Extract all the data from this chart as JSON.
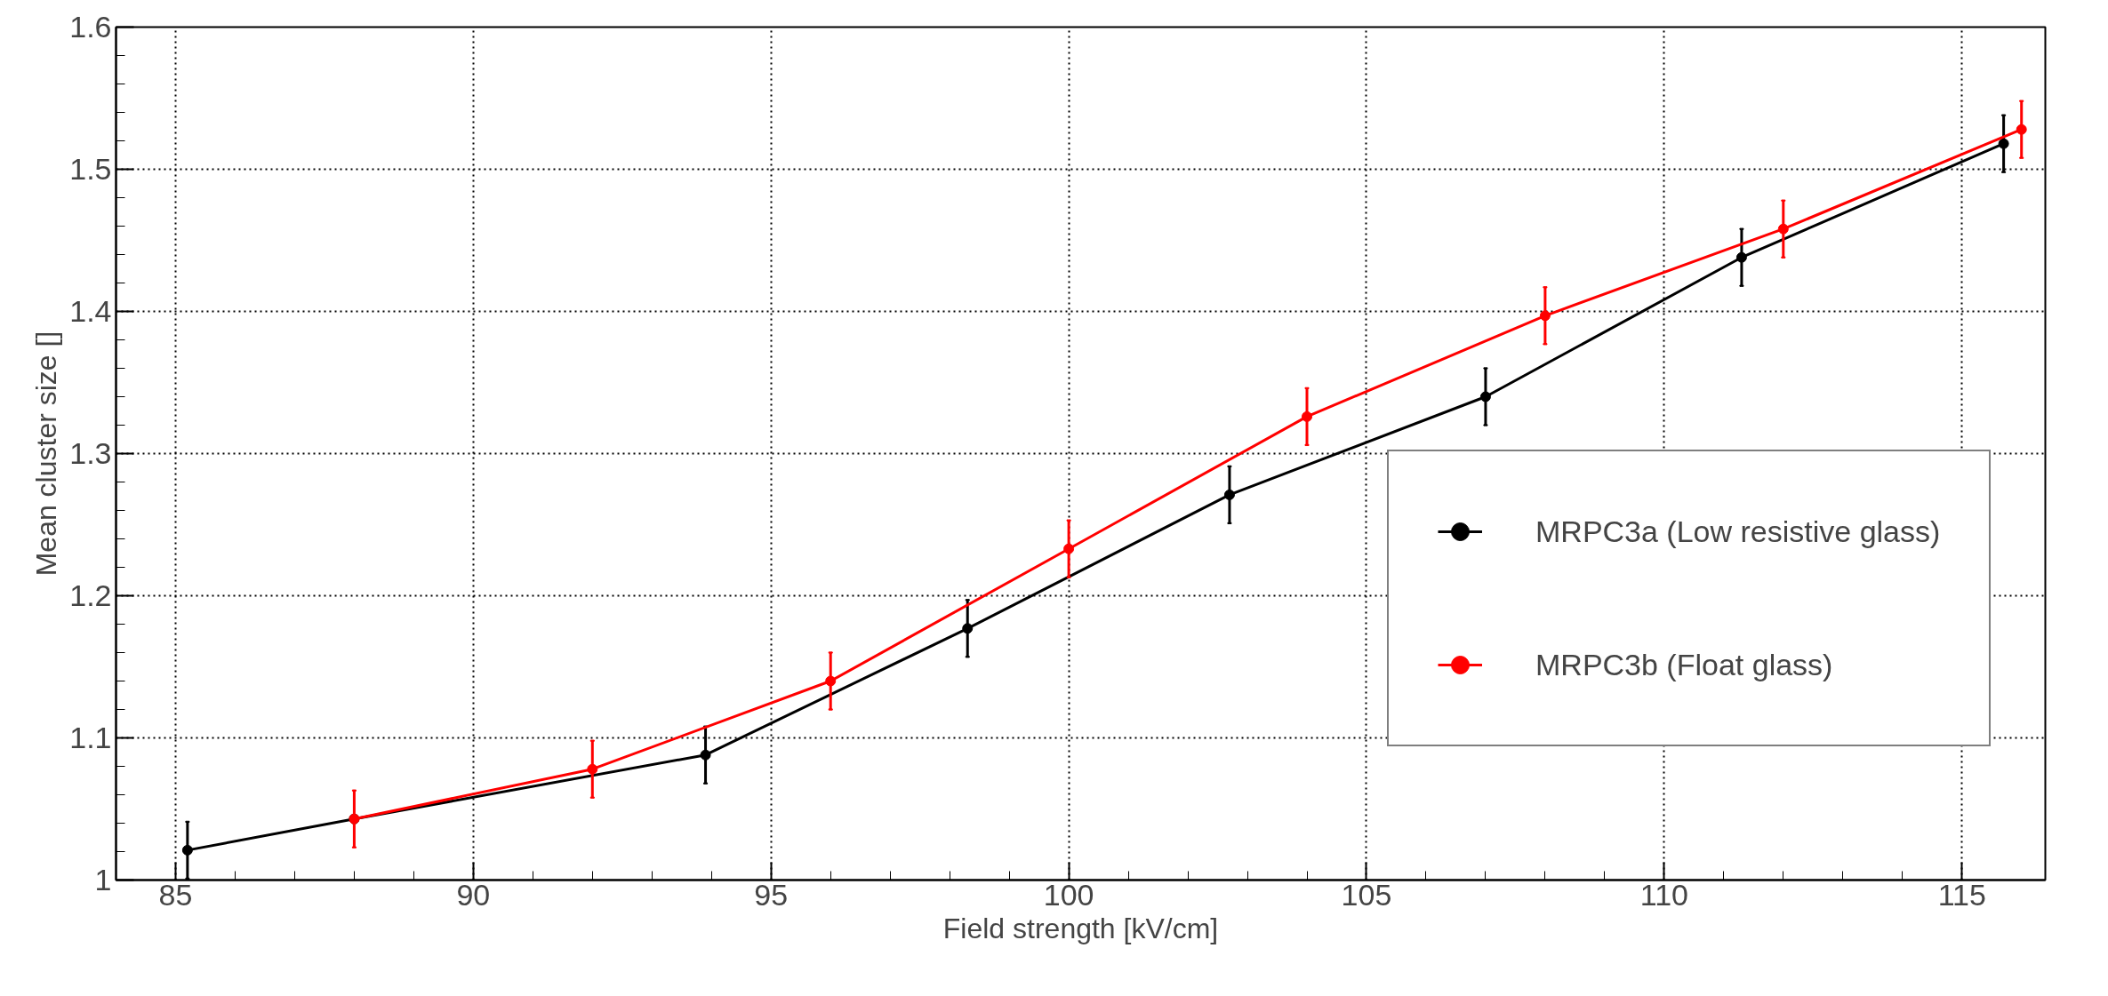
{
  "chart_data": {
    "type": "line",
    "xlabel": "Field strength [kV/cm]",
    "ylabel": "Mean cluster size []",
    "xlim": [
      84,
      116.4
    ],
    "ylim": [
      1,
      1.6
    ],
    "xticks": [
      85,
      90,
      95,
      100,
      105,
      110,
      115
    ],
    "yticks": [
      1,
      1.1,
      1.2,
      1.3,
      1.4,
      1.5,
      1.6
    ],
    "grid": true,
    "legend": "right",
    "marker": "circle",
    "line_style": "solid",
    "series": [
      {
        "name": "MRPC3a (Low resistive glass)",
        "color": "#000000",
        "x": [
          85.2,
          88.0,
          93.9,
          98.3,
          102.7,
          107.0,
          111.3,
          115.7
        ],
        "values": [
          1.021,
          1.043,
          1.088,
          1.177,
          1.271,
          1.34,
          1.438,
          1.518
        ],
        "errors": [
          0.02,
          null,
          0.02,
          0.02,
          0.02,
          0.02,
          0.02,
          0.02
        ]
      },
      {
        "name": "MRPC3b (Float glass)",
        "color": "#ff0000",
        "x": [
          88,
          92,
          96,
          100,
          104,
          108,
          112,
          116
        ],
        "values": [
          1.043,
          1.078,
          1.14,
          1.233,
          1.326,
          1.397,
          1.458,
          1.528
        ],
        "errors": [
          0.02,
          0.02,
          0.02,
          0.02,
          0.02,
          0.02,
          0.02,
          0.02
        ]
      }
    ]
  }
}
